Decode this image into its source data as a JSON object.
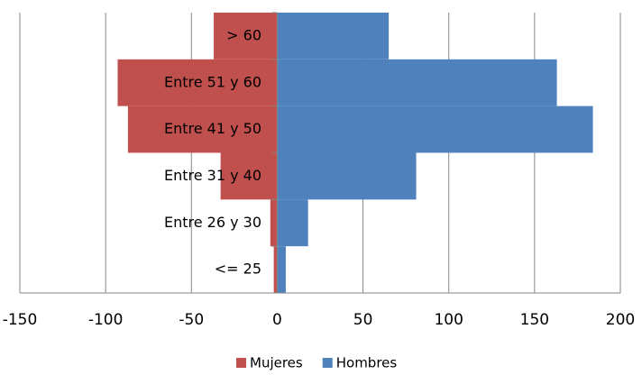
{
  "chart_data": {
    "type": "bar",
    "orientation": "horizontal",
    "stacked": true,
    "categories": [
      "<= 25",
      "Entre 26 y 30",
      "Entre 31 y 40",
      "Entre 41 y 50",
      "Entre 51 y 60",
      "> 60"
    ],
    "series": [
      {
        "name": "Mujeres",
        "color": "#c0504d",
        "values": [
          -2,
          -4,
          -33,
          -87,
          -93,
          -37
        ]
      },
      {
        "name": "Hombres",
        "color": "#4f81bd",
        "values": [
          5,
          18,
          81,
          184,
          163,
          65
        ]
      }
    ],
    "xlim": [
      -150,
      200
    ],
    "xticks": [
      -150,
      -100,
      -50,
      0,
      50,
      100,
      150,
      200
    ],
    "grid": true,
    "legend": "bottom"
  }
}
